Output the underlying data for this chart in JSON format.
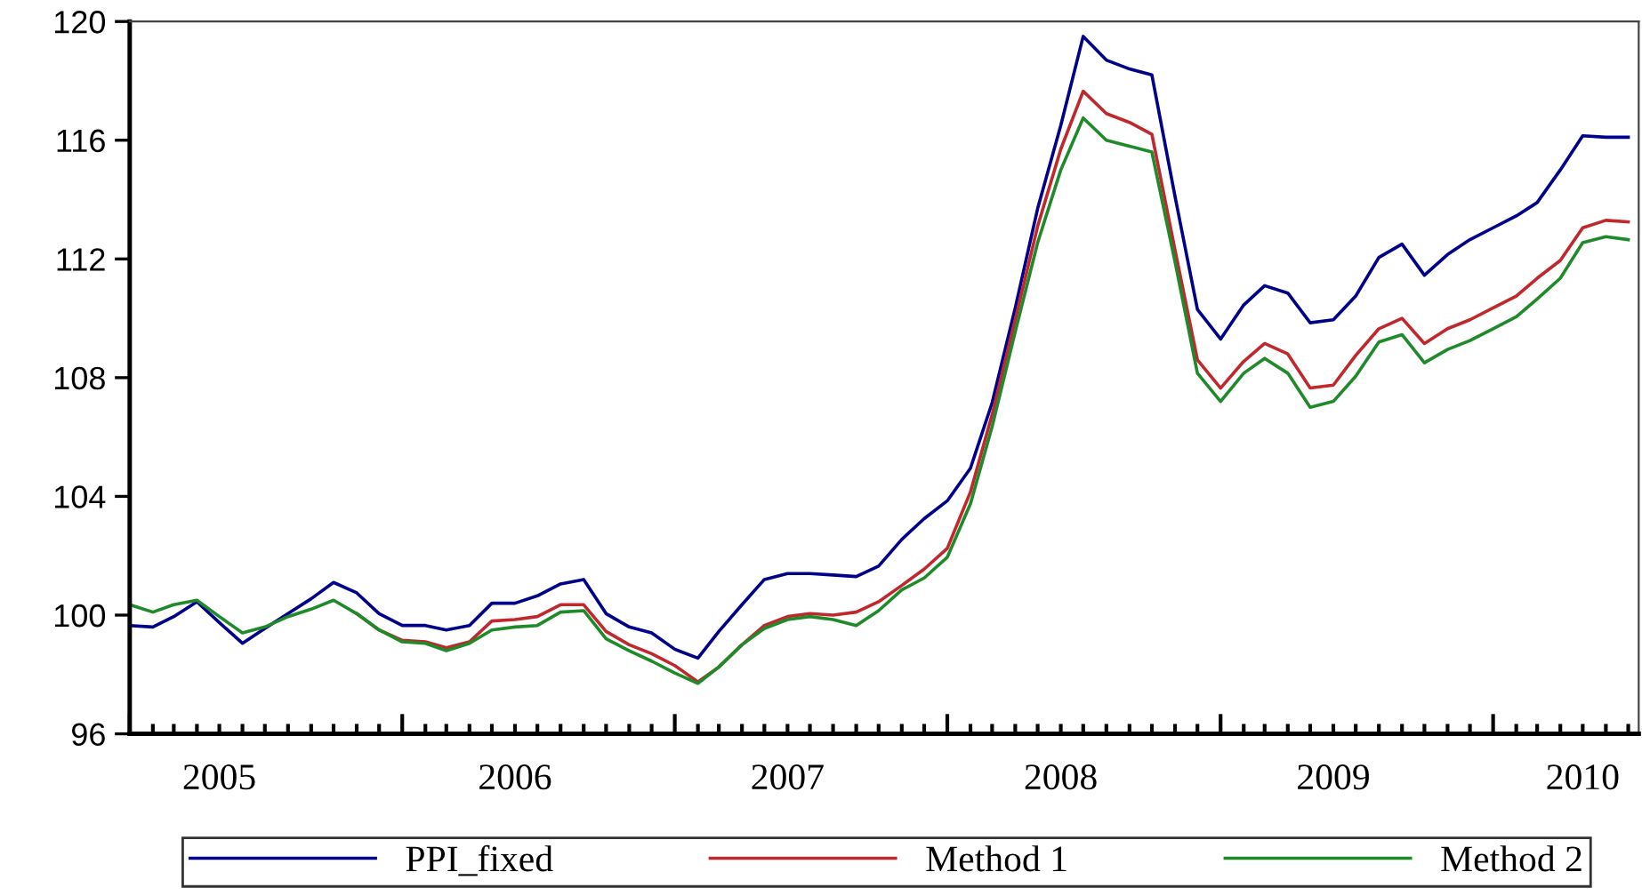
{
  "chart_data": {
    "type": "line",
    "x": [
      "2005-01",
      "2005-02",
      "2005-03",
      "2005-04",
      "2005-05",
      "2005-06",
      "2005-07",
      "2005-08",
      "2005-09",
      "2005-10",
      "2005-11",
      "2005-12",
      "2006-01",
      "2006-02",
      "2006-03",
      "2006-04",
      "2006-05",
      "2006-06",
      "2006-07",
      "2006-08",
      "2006-09",
      "2006-10",
      "2006-11",
      "2006-12",
      "2007-01",
      "2007-02",
      "2007-03",
      "2007-04",
      "2007-05",
      "2007-06",
      "2007-07",
      "2007-08",
      "2007-09",
      "2007-10",
      "2007-11",
      "2007-12",
      "2008-01",
      "2008-02",
      "2008-03",
      "2008-04",
      "2008-05",
      "2008-06",
      "2008-07",
      "2008-08",
      "2008-09",
      "2008-10",
      "2008-11",
      "2008-12",
      "2009-01",
      "2009-02",
      "2009-03",
      "2009-04",
      "2009-05",
      "2009-06",
      "2009-07",
      "2009-08",
      "2009-09",
      "2009-10",
      "2009-11",
      "2009-12",
      "2010-01",
      "2010-02",
      "2010-03",
      "2010-04",
      "2010-05",
      "2010-06",
      "2010-07"
    ],
    "series": [
      {
        "name": "PPI_fixed",
        "color": "#00008b",
        "values": [
          99.65,
          99.6,
          99.95,
          100.45,
          99.75,
          99.05,
          99.55,
          100.05,
          100.55,
          101.1,
          100.75,
          100.05,
          99.65,
          99.65,
          99.5,
          99.65,
          100.4,
          100.4,
          100.65,
          101.05,
          101.2,
          100.05,
          99.6,
          99.4,
          98.85,
          98.55,
          99.45,
          100.35,
          101.2,
          101.4,
          101.4,
          101.35,
          101.3,
          101.65,
          102.55,
          103.25,
          103.85,
          104.95,
          107.15,
          110.35,
          113.7,
          116.5,
          119.5,
          118.7,
          118.4,
          118.2,
          114.1,
          110.3,
          109.3,
          110.45,
          111.1,
          110.85,
          109.85,
          109.95,
          110.75,
          112.05,
          112.5,
          111.45,
          112.15,
          112.65,
          113.05,
          113.45,
          113.9,
          115.0,
          116.15,
          116.1,
          116.1
        ]
      },
      {
        "name": "Method 1",
        "color": "#c0282d",
        "values": [
          null,
          null,
          null,
          null,
          null,
          null,
          null,
          null,
          null,
          null,
          100.05,
          99.5,
          99.15,
          99.1,
          98.9,
          99.1,
          99.8,
          99.85,
          99.95,
          100.35,
          100.35,
          99.45,
          99.0,
          98.7,
          98.3,
          97.75,
          98.25,
          99.0,
          99.65,
          99.95,
          100.05,
          100.0,
          100.1,
          100.45,
          101.0,
          101.55,
          102.25,
          104.15,
          106.75,
          109.95,
          113.1,
          115.7,
          117.65,
          116.9,
          116.6,
          116.2,
          112.3,
          108.6,
          107.65,
          108.55,
          109.15,
          108.8,
          107.65,
          107.75,
          108.75,
          109.65,
          110.0,
          109.15,
          109.65,
          109.95,
          110.35,
          110.75,
          111.35,
          111.95,
          113.05,
          113.3,
          113.25
        ]
      },
      {
        "name": "Method 2",
        "color": "#1f8a2a",
        "values": [
          100.35,
          100.1,
          100.35,
          100.5,
          99.95,
          99.4,
          99.6,
          99.95,
          100.2,
          100.5,
          100.05,
          99.5,
          99.1,
          99.05,
          98.8,
          99.05,
          99.5,
          99.6,
          99.65,
          100.1,
          100.15,
          99.2,
          98.8,
          98.45,
          98.05,
          97.7,
          98.25,
          99.0,
          99.55,
          99.85,
          99.95,
          99.85,
          99.65,
          100.15,
          100.85,
          101.25,
          101.95,
          103.75,
          106.35,
          109.55,
          112.55,
          115.0,
          116.75,
          116.0,
          115.8,
          115.6,
          111.9,
          108.15,
          107.2,
          108.15,
          108.65,
          108.15,
          107.0,
          107.2,
          108.05,
          109.2,
          109.45,
          108.5,
          108.95,
          109.25,
          109.65,
          110.05,
          110.65,
          111.35,
          112.55,
          112.75,
          112.65
        ]
      }
    ],
    "xlim": [
      "2005-01",
      "2010-07-15"
    ],
    "xticks": [
      {
        "value": "2005-01",
        "label": null
      },
      {
        "value": "2006-01",
        "label": null
      },
      {
        "value": "2007-01",
        "label": null
      },
      {
        "value": "2008-01",
        "label": null
      },
      {
        "value": "2009-01",
        "label": null
      },
      {
        "value": "2010-01",
        "label": null
      },
      {
        "value": "2005-05",
        "label": "2005"
      },
      {
        "value": "2006-06",
        "label": "2006"
      },
      {
        "value": "2007-06",
        "label": "2007"
      },
      {
        "value": "2008-06",
        "label": "2008"
      },
      {
        "value": "2009-06",
        "label": "2009"
      },
      {
        "value": "2010-05",
        "label": "2010"
      }
    ],
    "ylim": [
      96,
      120
    ],
    "yticks": [
      96,
      100,
      104,
      108,
      112,
      116,
      120
    ],
    "grid": false,
    "legend": "bottom",
    "marker": "none",
    "line_style": "solid"
  }
}
